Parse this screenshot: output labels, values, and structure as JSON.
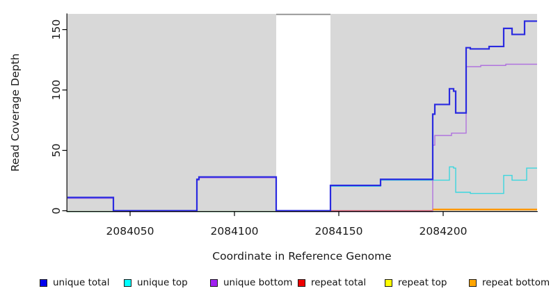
{
  "figure": {
    "x_axis_title": "Coordinate in Reference Genome",
    "y_axis_title": "Read Coverage Depth"
  },
  "legend": {
    "items": [
      {
        "label": "unique total",
        "swatch_color": "#0000ee"
      },
      {
        "label": "unique top",
        "swatch_color": "#00ffff"
      },
      {
        "label": "unique bottom",
        "swatch_color": "#a020f0"
      },
      {
        "label": "repeat total",
        "swatch_color": "#ee0000"
      },
      {
        "label": "repeat top",
        "swatch_color": "#ffff00"
      },
      {
        "label": "repeat bottom",
        "swatch_color": "#ffa500"
      }
    ]
  },
  "chart_data": {
    "type": "line",
    "line_style": "step",
    "title": "",
    "xlabel": "Coordinate in Reference Genome",
    "ylabel": "Read Coverage Depth",
    "xlim": [
      2084020,
      2084245
    ],
    "ylim": [
      0,
      163
    ],
    "x_ticks": [
      2084050,
      2084100,
      2084150,
      2084200
    ],
    "y_ticks": [
      0,
      50,
      100,
      150
    ],
    "grid": false,
    "legend_position": "bottom",
    "plot_background": "#d8d8d8",
    "axis_color": "#000000",
    "masked_region": {
      "x1": 2084120,
      "x2": 2084146,
      "fill": "#ffffff",
      "top_line_color": "#8f8f8f"
    },
    "baseline_overlays": [
      {
        "name": "zero-coverage blend",
        "color": "#7cc87c",
        "y": 0,
        "x1": 2084020,
        "x2": 2084120
      }
    ],
    "series": [
      {
        "name": "unique total",
        "color": "#2a2ae0",
        "points": [
          [
            2084020,
            11
          ],
          [
            2084042,
            0
          ],
          [
            2084082,
            26
          ],
          [
            2084083,
            28
          ],
          [
            2084120,
            0
          ],
          [
            2084146,
            21
          ],
          [
            2084170,
            26
          ],
          [
            2084195,
            80
          ],
          [
            2084196,
            88
          ],
          [
            2084203,
            101
          ],
          [
            2084205,
            99
          ],
          [
            2084206,
            81
          ],
          [
            2084211,
            135
          ],
          [
            2084213,
            134
          ],
          [
            2084222,
            136
          ],
          [
            2084229,
            151
          ],
          [
            2084233,
            146
          ],
          [
            2084239,
            157
          ]
        ]
      },
      {
        "name": "unique top",
        "color": "#3bd6de",
        "points": [
          [
            2084020,
            0
          ],
          [
            2084146,
            21
          ],
          [
            2084170,
            26
          ],
          [
            2084203,
            37
          ],
          [
            2084205,
            36
          ],
          [
            2084206,
            16
          ],
          [
            2084213,
            15
          ],
          [
            2084229,
            30
          ],
          [
            2084233,
            26
          ],
          [
            2084240,
            36
          ]
        ]
      },
      {
        "name": "unique bottom",
        "color": "#b073de",
        "points": [
          [
            2084020,
            11
          ],
          [
            2084042,
            0
          ],
          [
            2084082,
            26
          ],
          [
            2084083,
            28
          ],
          [
            2084120,
            0
          ],
          [
            2084195,
            55
          ],
          [
            2084196,
            63
          ],
          [
            2084204,
            65
          ],
          [
            2084211,
            120
          ],
          [
            2084218,
            121
          ],
          [
            2084230,
            122
          ]
        ]
      },
      {
        "name": "repeat total",
        "color": "#cc5068",
        "points": [
          [
            2084020,
            0
          ],
          [
            2084195,
            1
          ]
        ]
      },
      {
        "name": "repeat top",
        "color": "#e6e600",
        "points": [
          [
            2084020,
            0
          ]
        ]
      },
      {
        "name": "repeat bottom",
        "color": "#ff9800",
        "points": [
          [
            2084020,
            0
          ],
          [
            2084195,
            1
          ]
        ]
      }
    ]
  }
}
